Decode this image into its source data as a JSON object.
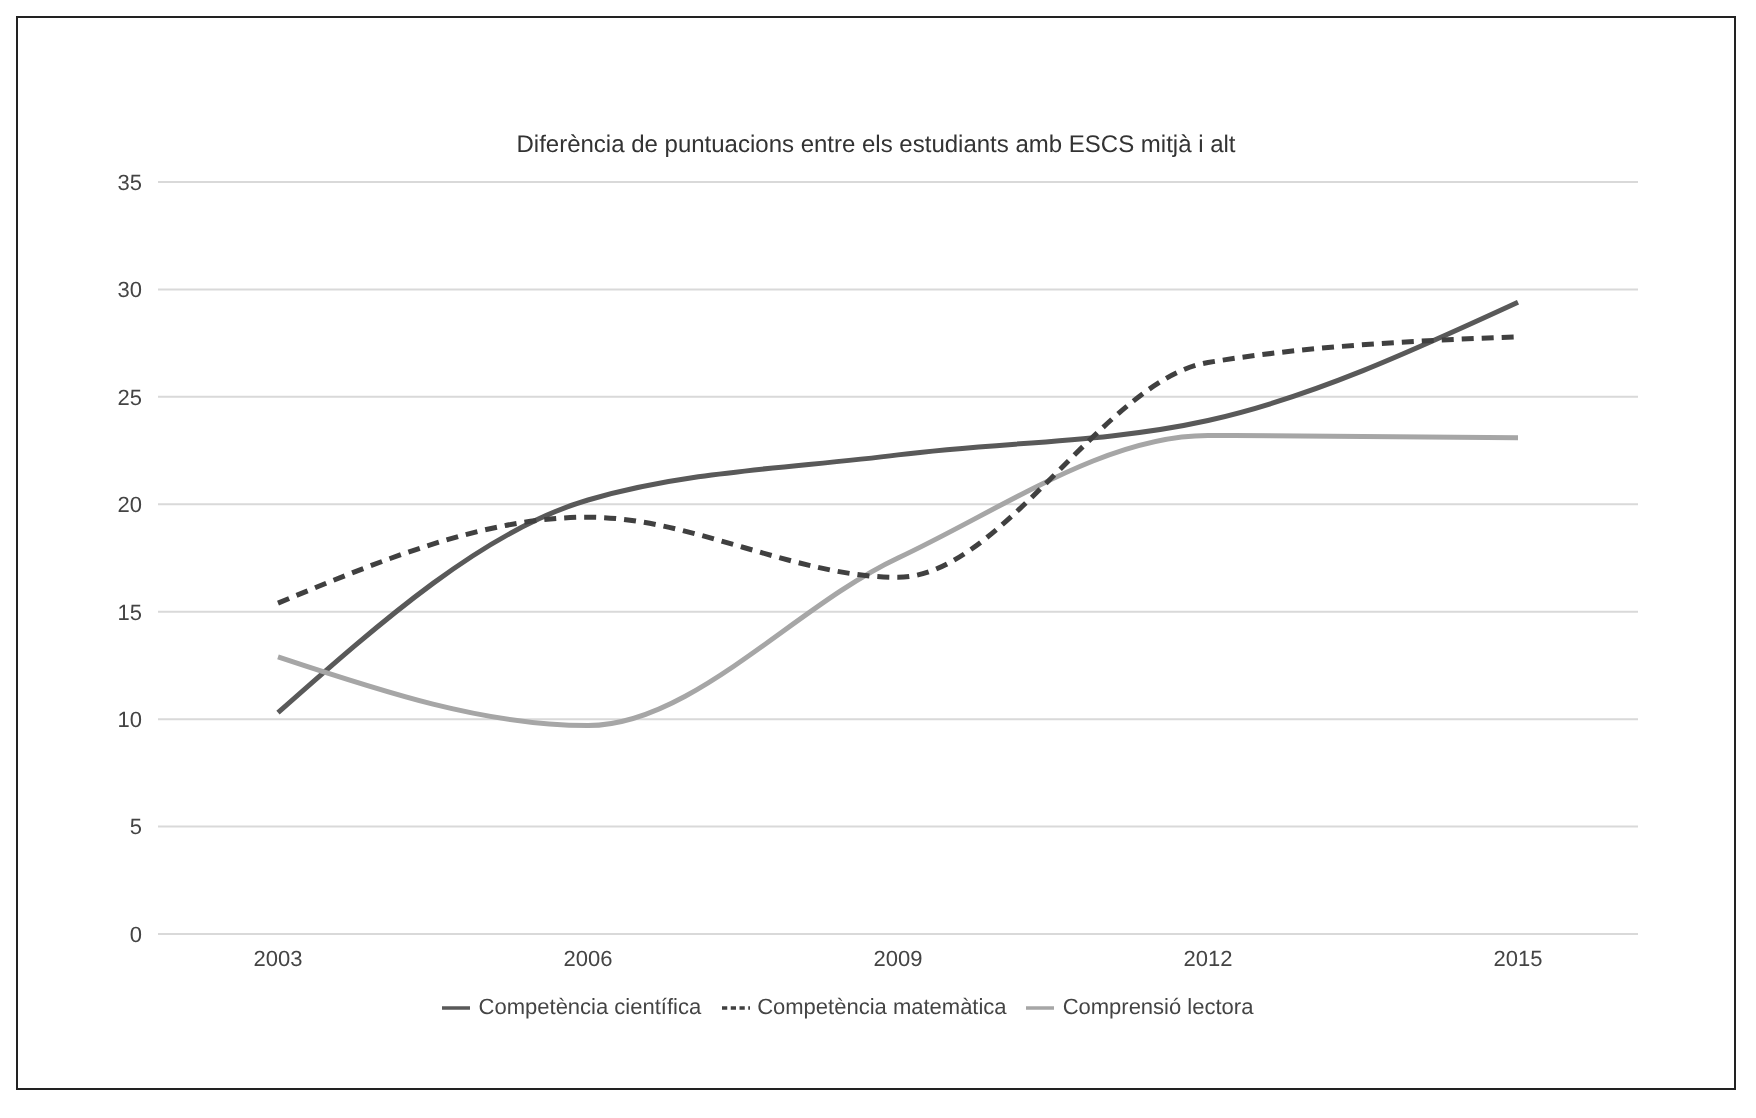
{
  "chart_data": {
    "type": "line",
    "title": "Diferència de puntuacions entre els estudiants amb ESCS mitjà i alt",
    "categories": [
      "2003",
      "2006",
      "2009",
      "2012",
      "2015"
    ],
    "series": [
      {
        "name": "Competència científica",
        "color": "#595959",
        "values": [
          10.3,
          20.2,
          22.3,
          23.9,
          29.4
        ]
      },
      {
        "name": "Comprensió lectora",
        "color": "#a6a6a6",
        "values": [
          12.9,
          9.7,
          17.5,
          23.2,
          23.1
        ]
      },
      {
        "name": "Competència matemàtica",
        "color": "#404040",
        "values": [
          15.4,
          19.4,
          16.6,
          26.6,
          27.8
        ],
        "line_style": "dashed"
      }
    ],
    "ylim": [
      0,
      35
    ],
    "yticks": [
      0,
      5,
      10,
      15,
      20,
      25,
      30,
      35
    ],
    "grid": "y",
    "legend": "bottom"
  }
}
